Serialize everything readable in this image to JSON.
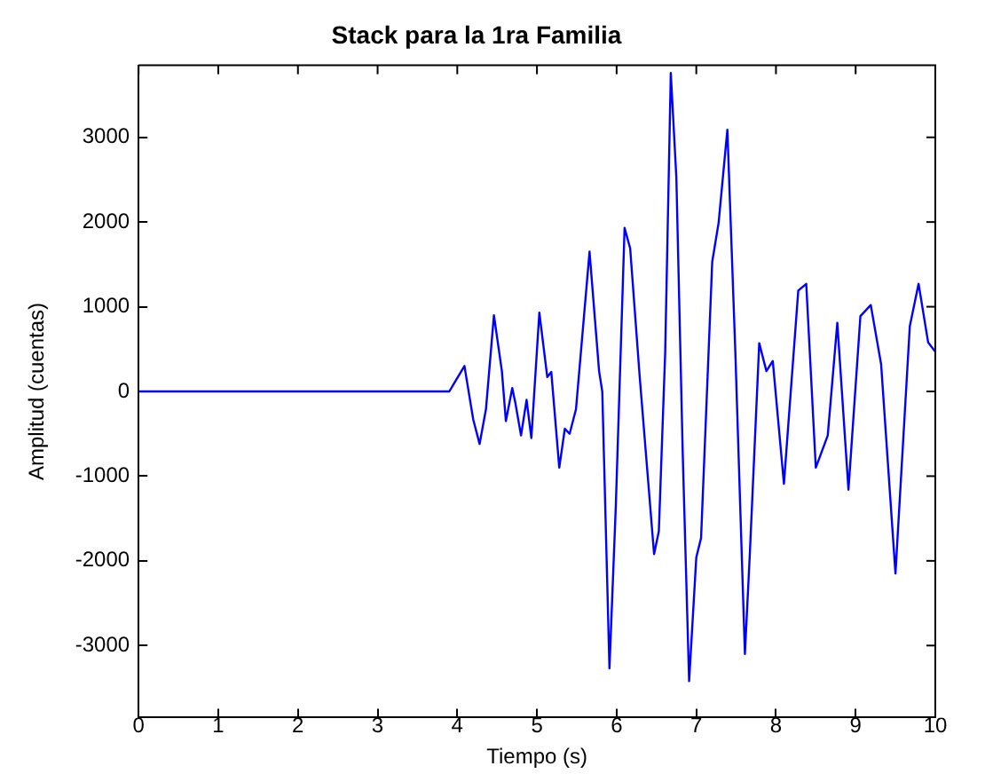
{
  "chart_data": {
    "type": "line",
    "title": "Stack para la 1ra Familia",
    "xlabel": "Tiempo (s)",
    "ylabel": "Amplitud (cuentas)",
    "xlim": [
      0,
      10
    ],
    "xticks": [
      0,
      1,
      2,
      3,
      4,
      5,
      6,
      7,
      8,
      9,
      10
    ],
    "ylim": [
      -3850,
      3850
    ],
    "yticks": [
      -3000,
      -2000,
      -1000,
      0,
      1000,
      2000,
      3000
    ],
    "grid": false,
    "legend": false,
    "marker": "none",
    "line_style": "solid",
    "series": [
      {
        "color": "#0000ff",
        "x": [
          0,
          3.9,
          4.09,
          4.2,
          4.28,
          4.36,
          4.46,
          4.56,
          4.61,
          4.69,
          4.73,
          4.8,
          4.87,
          4.93,
          5.03,
          5.13,
          5.18,
          5.28,
          5.35,
          5.41,
          5.49,
          5.66,
          5.78,
          5.82,
          5.91,
          5.99,
          6.1,
          6.17,
          6.29,
          6.47,
          6.53,
          6.61,
          6.68,
          6.75,
          6.83,
          6.91,
          7.0,
          7.06,
          7.2,
          7.28,
          7.39,
          7.49,
          7.61,
          7.67,
          7.79,
          7.88,
          7.96,
          8.1,
          8.28,
          8.38,
          8.5,
          8.65,
          8.77,
          8.91,
          9.06,
          9.19,
          9.32,
          9.5,
          9.68,
          9.79,
          9.91,
          10
        ],
        "values": [
          0,
          0,
          300,
          -330,
          -620,
          -210,
          900,
          240,
          -350,
          40,
          -140,
          -520,
          -100,
          -550,
          930,
          170,
          230,
          -900,
          -440,
          -500,
          -210,
          1650,
          240,
          0,
          -3270,
          -1350,
          1930,
          1690,
          170,
          -1920,
          -1650,
          470,
          3760,
          2520,
          -740,
          -3420,
          -1960,
          -1730,
          1530,
          1990,
          3090,
          470,
          -3100,
          -1960,
          570,
          240,
          360,
          -1090,
          1190,
          1270,
          -900,
          -520,
          810,
          -1160,
          890,
          1020,
          320,
          -2150,
          770,
          1270,
          580,
          470
        ]
      }
    ]
  }
}
